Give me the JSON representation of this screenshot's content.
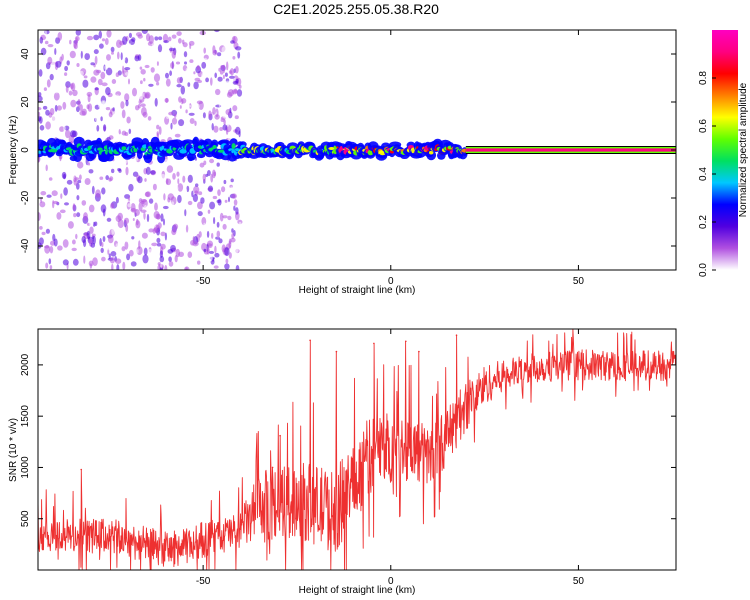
{
  "title": "C2E1.2025.255.05.38.R20",
  "chart_data": [
    {
      "type": "heatmap",
      "name": "spectrogram",
      "title": "C2E1.2025.255.05.38.R20",
      "xlabel": "Height of straight line (km)",
      "ylabel": "Frequency (Hz)",
      "xlim": [
        -94,
        76
      ],
      "ylim": [
        -50,
        50
      ],
      "xticks": [
        -50,
        0,
        50
      ],
      "yticks": [
        -40,
        -20,
        0,
        20,
        40
      ],
      "colorbar": {
        "label": "Normalized spectral amplitude",
        "range": [
          0,
          1
        ],
        "ticks": [
          "0.0",
          "0.2",
          "0.4",
          "0.6",
          "0.8"
        ],
        "tick_values": [
          0,
          0.2,
          0.4,
          0.6,
          0.8
        ],
        "colors": [
          "#ffffff",
          "#b050e0",
          "#5000e0",
          "#0000ff",
          "#00c8ff",
          "#00e060",
          "#60ff00",
          "#ffff00",
          "#ff8000",
          "#ff0000",
          "#ff0080",
          "#ff00c0"
        ]
      },
      "central_line": {
        "frequency": 0,
        "signal_segments": [
          {
            "x_from": -94,
            "x_to": -40,
            "amplitude": 0.45
          },
          {
            "x_from": -40,
            "x_to": -15,
            "amplitude": 0.6
          },
          {
            "x_from": -15,
            "x_to": 20,
            "amplitude": 0.8
          },
          {
            "x_from": 20,
            "x_to": 76,
            "amplitude": 0.95
          }
        ]
      },
      "noise_band": {
        "x_from": -94,
        "x_to": -40,
        "frequency_spread": 50
      }
    },
    {
      "type": "line",
      "name": "snr",
      "xlabel": "Height of straight line (km)",
      "ylabel": "SNR (10 * v/v)",
      "xlim": [
        -94,
        76
      ],
      "ylim": [
        0,
        2350
      ],
      "xticks": [
        -50,
        0,
        50
      ],
      "yticks": [
        500,
        1000,
        1500,
        2000
      ],
      "color": "#ee3030",
      "trend": {
        "x": [
          -94,
          -85,
          -75,
          -65,
          -60,
          -55,
          -50,
          -45,
          -40,
          -35,
          -30,
          -25,
          -20,
          -15,
          -10,
          -5,
          0,
          5,
          10,
          15,
          20,
          25,
          30,
          40,
          50,
          60,
          70,
          76
        ],
        "y": [
          350,
          330,
          330,
          250,
          200,
          220,
          300,
          330,
          400,
          600,
          650,
          680,
          640,
          560,
          850,
          1150,
          1200,
          1200,
          1100,
          1300,
          1600,
          1800,
          1900,
          1980,
          2000,
          1990,
          2000,
          1990
        ]
      },
      "noise_amplitude": {
        "x": [
          -94,
          -40,
          -35,
          -10,
          0,
          20,
          30,
          76
        ],
        "y": [
          170,
          180,
          350,
          420,
          350,
          250,
          150,
          150
        ]
      },
      "spikes": [
        {
          "x": -82.5,
          "y": 980
        },
        {
          "x": -31.5,
          "y": 1000
        },
        {
          "x": -29.5,
          "y": 1310
        },
        {
          "x": -21.5,
          "y": 2240
        },
        {
          "x": -14.5,
          "y": 2130
        },
        {
          "x": -4.5,
          "y": 2210
        },
        {
          "x": 4,
          "y": 2230
        },
        {
          "x": 7.5,
          "y": 2130
        },
        {
          "x": 17.5,
          "y": 2290
        }
      ]
    }
  ]
}
